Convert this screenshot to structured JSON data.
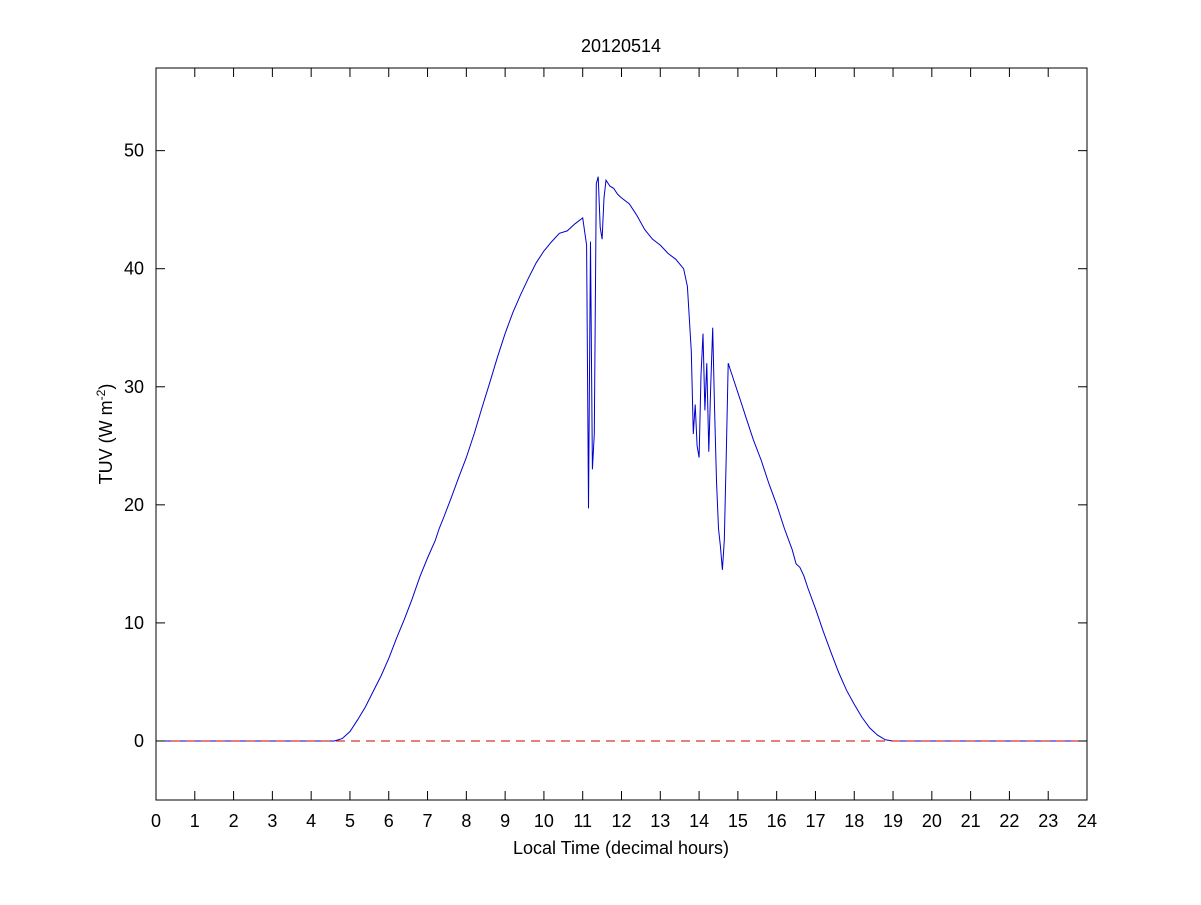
{
  "chart_data": {
    "type": "line",
    "title": "20120514",
    "xlabel": "Local Time (decimal hours)",
    "ylabel_main": "TUV (W m",
    "ylabel_sup": "-2",
    "ylabel_close": ")",
    "xlim": [
      0,
      24
    ],
    "ylim": [
      -5,
      57
    ],
    "xticks": [
      0,
      1,
      2,
      3,
      4,
      5,
      6,
      7,
      8,
      9,
      10,
      11,
      12,
      13,
      14,
      15,
      16,
      17,
      18,
      19,
      20,
      21,
      22,
      23,
      24
    ],
    "yticks": [
      0,
      10,
      20,
      30,
      40,
      50
    ],
    "grid": false,
    "series": [
      {
        "line_color": "#0000cc",
        "style": "solid",
        "x": [
          0,
          4.6,
          4.8,
          5.0,
          5.2,
          5.4,
          5.6,
          5.8,
          6.0,
          6.2,
          6.4,
          6.6,
          6.8,
          7.0,
          7.2,
          7.3,
          7.4,
          7.6,
          7.8,
          8.0,
          8.2,
          8.4,
          8.6,
          8.8,
          9.0,
          9.2,
          9.4,
          9.6,
          9.8,
          10.0,
          10.2,
          10.4,
          10.6,
          10.8,
          11.0,
          11.1,
          11.15,
          11.2,
          11.25,
          11.3,
          11.35,
          11.4,
          11.45,
          11.5,
          11.55,
          11.6,
          11.7,
          11.8,
          11.9,
          12.0,
          12.2,
          12.4,
          12.6,
          12.8,
          13.0,
          13.2,
          13.4,
          13.6,
          13.7,
          13.8,
          13.85,
          13.9,
          13.95,
          14.0,
          14.05,
          14.1,
          14.15,
          14.2,
          14.25,
          14.3,
          14.35,
          14.4,
          14.45,
          14.5,
          14.55,
          14.6,
          14.65,
          14.7,
          14.75,
          14.8,
          14.85,
          14.9,
          15.0,
          15.1,
          15.2,
          15.4,
          15.6,
          15.8,
          16.0,
          16.2,
          16.4,
          16.5,
          16.6,
          16.7,
          16.8,
          17.0,
          17.2,
          17.4,
          17.6,
          17.8,
          18.0,
          18.2,
          18.4,
          18.6,
          18.8,
          19.0,
          19.2,
          19.4,
          19.6,
          24
        ],
        "y": [
          0,
          0,
          0.2,
          0.8,
          1.8,
          2.9,
          4.2,
          5.5,
          7.0,
          8.7,
          10.3,
          12.0,
          13.9,
          15.5,
          17.0,
          18.0,
          18.8,
          20.5,
          22.3,
          24.0,
          26.0,
          28.2,
          30.3,
          32.5,
          34.5,
          36.3,
          37.8,
          39.2,
          40.5,
          41.5,
          42.3,
          43.0,
          43.2,
          43.8,
          44.3,
          42.0,
          19.7,
          42.3,
          23.0,
          26.0,
          47.2,
          47.8,
          43.5,
          42.5,
          46.0,
          47.5,
          47.0,
          46.8,
          46.3,
          46.0,
          45.5,
          44.5,
          43.3,
          42.5,
          42.0,
          41.3,
          40.8,
          40.0,
          38.5,
          33.0,
          26.0,
          28.5,
          25.0,
          24.0,
          31.0,
          34.5,
          28.0,
          32.0,
          24.5,
          30.0,
          35.0,
          28.0,
          22.0,
          18.0,
          16.5,
          14.5,
          17.0,
          24.0,
          32.0,
          31.5,
          31.0,
          30.5,
          29.5,
          28.5,
          27.5,
          25.5,
          23.8,
          21.8,
          20.0,
          18.0,
          16.2,
          15.0,
          14.7,
          14.0,
          13.0,
          11.2,
          9.3,
          7.5,
          5.8,
          4.3,
          3.1,
          2.0,
          1.1,
          0.5,
          0.1,
          0,
          0,
          0,
          0,
          0
        ]
      },
      {
        "line_color": "#cc0000",
        "style": "dashed",
        "x": [
          0,
          24
        ],
        "y": [
          0,
          0
        ]
      }
    ]
  }
}
